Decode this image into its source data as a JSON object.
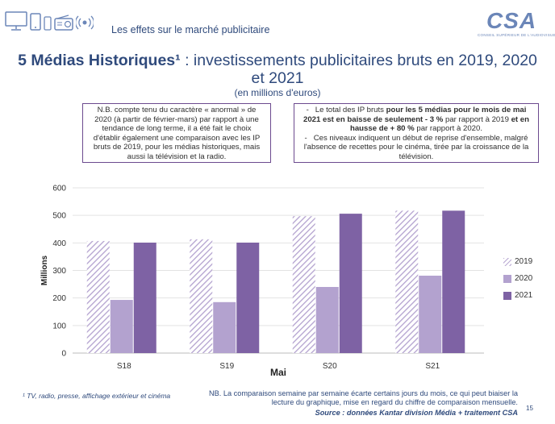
{
  "header": {
    "section_title": "Les effets sur le marché publicitaire",
    "logo_text": "CSA",
    "logo_subtitle": "CONSEIL SUPÉRIEUR DE L'AUDIOVISUEL",
    "device_icons": [
      "tv-icon",
      "tablet-icon",
      "phone-icon",
      "radio-icon",
      "broadcast-icon"
    ]
  },
  "title": {
    "bold_part": "5 Médias Historiques¹",
    "rest": " : investissements publicitaires bruts en 2019, 2020 et 2021",
    "subtitle": "(en millions d'euros)"
  },
  "notes": {
    "left": "N.B. compte tenu du caractère « anormal » de 2020 (à partir de février-mars) par rapport à une tendance de long terme, il a été fait le choix d'établir également une comparaison avec les IP bruts de 2019, pour les médias historiques, mais aussi la télévision et la radio.",
    "right_item1_a": "Le total des IP bruts ",
    "right_item1_b": "pour les 5 médias pour le mois de mai 2021 est en baisse de seulement - 3 %",
    "right_item1_c": " par rapport à 2019 ",
    "right_item1_d": "et en hausse de + 80 %",
    "right_item1_e": " par rapport à 2020.",
    "right_item2": "Ces niveaux indiquent un début de reprise d'ensemble, malgré l'absence de recettes pour le cinéma, tirée par la croissance de la télévision.",
    "bullet": "-"
  },
  "chart_data": {
    "type": "bar",
    "categories": [
      "S18",
      "S19",
      "S20",
      "S21"
    ],
    "series": [
      {
        "name": "2019",
        "values": [
          407,
          413,
          497,
          517
        ],
        "color": "#b3a2cf",
        "pattern": "hatched"
      },
      {
        "name": "2020",
        "values": [
          193,
          185,
          240,
          281
        ],
        "color": "#b3a2cf",
        "pattern": "solid"
      },
      {
        "name": "2021",
        "values": [
          401,
          401,
          506,
          517
        ],
        "color": "#7e62a4",
        "pattern": "solid"
      }
    ],
    "ylabel": "Millions",
    "xlabel": "Mai",
    "ylim": [
      0,
      600
    ],
    "yticks": [
      0,
      100,
      200,
      300,
      400,
      500,
      600
    ],
    "legend_position": "right"
  },
  "footer": {
    "footnote": "¹ TV, radio, presse, affichage extérieur et cinéma",
    "nb": "NB. La comparaison semaine par semaine écarte certains jours du mois, ce qui peut biaiser la lecture du graphique, mise en regard du chiffre de comparaison mensuelle.",
    "source": "Source : données Kantar division Média + traitement CSA",
    "page_number": "15"
  }
}
